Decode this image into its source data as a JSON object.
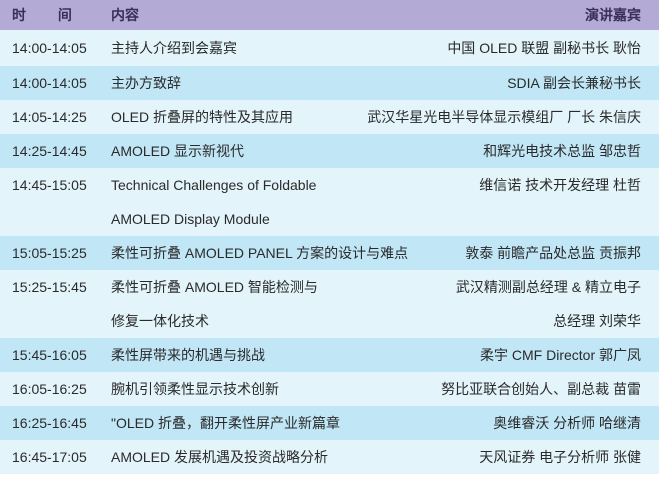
{
  "header": {
    "time": "时 间",
    "topic": "内容",
    "speaker": "演讲嘉宾"
  },
  "colors": {
    "header": "#b4aad6",
    "row_light": "#e3f4fb",
    "row_blue": "#c1e6f6"
  },
  "rows": [
    {
      "time": "14:00-14:05",
      "topic": [
        "主持人介绍到会嘉宾"
      ],
      "speaker": [
        "中国 OLED 联盟 副秘书长 耿怡"
      ]
    },
    {
      "time": "14:00-14:05",
      "topic": [
        "主办方致辞"
      ],
      "speaker": [
        "SDIA 副会长兼秘书长"
      ]
    },
    {
      "time": "14:05-14:25",
      "topic": [
        "OLED 折叠屏的特性及其应用"
      ],
      "speaker": [
        "武汉华星光电半导体显示模组厂 厂长 朱信庆"
      ]
    },
    {
      "time": "14:25-14:45",
      "topic": [
        "AMOLED 显示新视代"
      ],
      "speaker": [
        "和辉光电技术总监 邹忠哲"
      ]
    },
    {
      "time": "14:45-15:05",
      "topic": [
        "Technical Challenges of Foldable",
        "AMOLED Display Module"
      ],
      "speaker": [
        "维信诺 技术开发经理 杜哲"
      ]
    },
    {
      "time": "15:05-15:25",
      "topic": [
        "柔性可折叠 AMOLED PANEL 方案的设计与难点"
      ],
      "speaker": [
        "敦泰 前瞻产品处总监 贡振邦"
      ]
    },
    {
      "time": "15:25-15:45",
      "topic": [
        "柔性可折叠 AMOLED 智能检测与",
        "修复一体化技术"
      ],
      "speaker": [
        "武汉精测副总经理 & 精立电子",
        "总经理 刘荣华"
      ]
    },
    {
      "time": "15:45-16:05",
      "topic": [
        "柔性屏带来的机遇与挑战"
      ],
      "speaker": [
        "柔宇 CMF Director 郭广凤"
      ]
    },
    {
      "time": "16:05-16:25",
      "topic": [
        "腕机引领柔性显示技术创新"
      ],
      "speaker": [
        "努比亚联合创始人、副总裁 苗雷"
      ]
    },
    {
      "time": "16:25-16:45",
      "topic": [
        "\"OLED 折叠，翻开柔性屏产业新篇章"
      ],
      "speaker": [
        "奥维睿沃 分析师 哈继清"
      ]
    },
    {
      "time": "16:45-17:05",
      "topic": [
        "AMOLED 发展机遇及投资战略分析"
      ],
      "speaker": [
        "天风证券 电子分析师 张健"
      ]
    }
  ]
}
